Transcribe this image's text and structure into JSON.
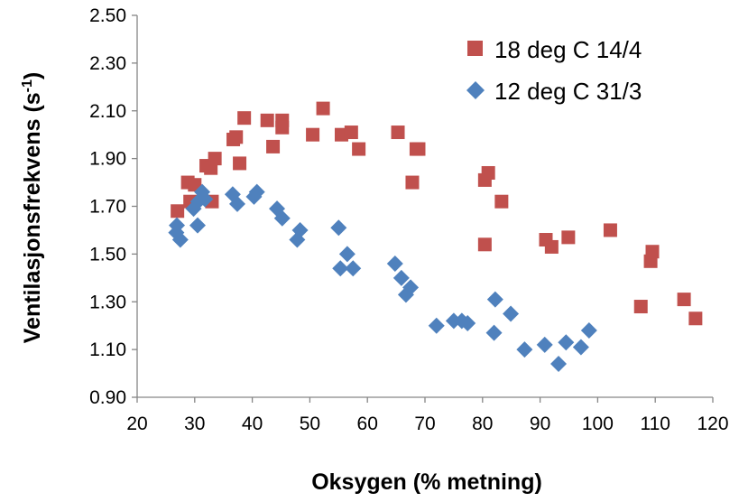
{
  "chart_data": {
    "type": "scatter",
    "xlabel": "Oksygen (% metning)",
    "ylabel_main": "Ventilasjonsfrekvens (s",
    "ylabel_sup": "-1",
    "ylabel_end": ")",
    "xlim": [
      20,
      120
    ],
    "ylim": [
      0.9,
      2.5
    ],
    "x_ticks": [
      20,
      30,
      40,
      50,
      60,
      70,
      80,
      90,
      100,
      110,
      120
    ],
    "x_tick_labels": [
      "20",
      "30",
      "40",
      "50",
      "60",
      "70",
      "80",
      "90",
      "100",
      "110",
      "120"
    ],
    "y_ticks": [
      0.9,
      1.1,
      1.3,
      1.5,
      1.7,
      1.9,
      2.1,
      2.3,
      2.5
    ],
    "y_tick_labels": [
      "0.90",
      "1.10",
      "1.30",
      "1.50",
      "1.70",
      "1.90",
      "2.10",
      "2.30",
      "2.50"
    ],
    "grid": false,
    "legend_position": "top-right",
    "series": [
      {
        "name": "18 deg C 14/4",
        "marker": "square",
        "color": "#C0504D",
        "points": [
          [
            27.0,
            1.68
          ],
          [
            28.8,
            1.8
          ],
          [
            29.2,
            1.72
          ],
          [
            30.0,
            1.79
          ],
          [
            32.0,
            1.87
          ],
          [
            32.8,
            1.86
          ],
          [
            33.0,
            1.72
          ],
          [
            33.5,
            1.9
          ],
          [
            36.7,
            1.98
          ],
          [
            37.2,
            1.99
          ],
          [
            37.8,
            1.88
          ],
          [
            38.6,
            2.07
          ],
          [
            42.6,
            2.06
          ],
          [
            43.6,
            1.95
          ],
          [
            45.2,
            2.06
          ],
          [
            45.2,
            2.03
          ],
          [
            50.5,
            2.0
          ],
          [
            52.3,
            2.11
          ],
          [
            55.5,
            2.0
          ],
          [
            57.2,
            2.01
          ],
          [
            58.5,
            1.94
          ],
          [
            65.3,
            2.01
          ],
          [
            67.8,
            1.8
          ],
          [
            68.5,
            1.94
          ],
          [
            68.9,
            1.94
          ],
          [
            80.4,
            1.54
          ],
          [
            80.4,
            1.81
          ],
          [
            81.0,
            1.84
          ],
          [
            83.3,
            1.72
          ],
          [
            91.0,
            1.56
          ],
          [
            92.0,
            1.53
          ],
          [
            94.9,
            1.57
          ],
          [
            102.2,
            1.6
          ],
          [
            107.5,
            1.28
          ],
          [
            109.2,
            1.47
          ],
          [
            109.5,
            1.51
          ],
          [
            115.0,
            1.31
          ],
          [
            117.0,
            1.23
          ]
        ]
      },
      {
        "name": "12 deg C 31/3",
        "marker": "diamond",
        "color": "#4F81BD",
        "points": [
          [
            26.8,
            1.59
          ],
          [
            26.9,
            1.62
          ],
          [
            27.5,
            1.56
          ],
          [
            29.8,
            1.69
          ],
          [
            30.5,
            1.62
          ],
          [
            30.6,
            1.72
          ],
          [
            31.3,
            1.76
          ],
          [
            31.8,
            1.73
          ],
          [
            36.6,
            1.75
          ],
          [
            37.4,
            1.71
          ],
          [
            40.3,
            1.74
          ],
          [
            40.8,
            1.76
          ],
          [
            44.3,
            1.69
          ],
          [
            45.2,
            1.65
          ],
          [
            47.8,
            1.56
          ],
          [
            48.3,
            1.6
          ],
          [
            55.0,
            1.61
          ],
          [
            55.3,
            1.44
          ],
          [
            56.5,
            1.5
          ],
          [
            57.5,
            1.44
          ],
          [
            64.8,
            1.46
          ],
          [
            65.9,
            1.4
          ],
          [
            66.7,
            1.33
          ],
          [
            67.5,
            1.36
          ],
          [
            72.0,
            1.2
          ],
          [
            75.0,
            1.22
          ],
          [
            76.4,
            1.22
          ],
          [
            77.4,
            1.21
          ],
          [
            82.0,
            1.17
          ],
          [
            82.2,
            1.31
          ],
          [
            84.9,
            1.25
          ],
          [
            87.3,
            1.1
          ],
          [
            90.8,
            1.12
          ],
          [
            93.2,
            1.04
          ],
          [
            94.5,
            1.13
          ],
          [
            97.1,
            1.11
          ],
          [
            98.5,
            1.18
          ]
        ]
      }
    ]
  }
}
